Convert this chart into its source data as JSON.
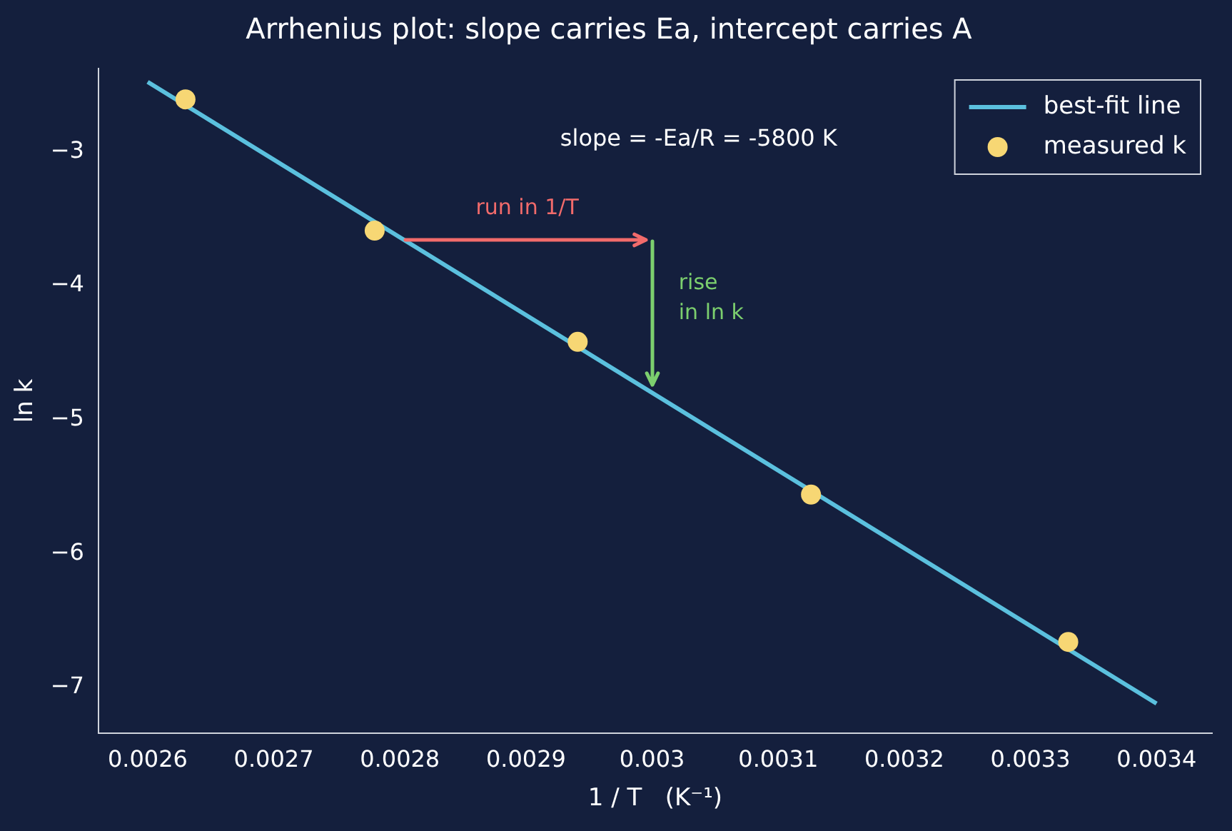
{
  "chart_data": {
    "type": "scatter",
    "title": "Arrhenius plot: slope carries Ea, intercept carries A",
    "xlabel": "1 / T   (K⁻¹)",
    "ylabel": "ln k",
    "xlim": [
      0.002561,
      0.003444
    ],
    "ylim": [
      -7.34,
      -2.38
    ],
    "xticks": [
      0.0026,
      0.0027,
      0.0028,
      0.0029,
      0.003,
      0.0031,
      0.0032,
      0.0033,
      0.0034
    ],
    "yticks": [
      -7,
      -6,
      -5,
      -4,
      -3
    ],
    "series": [
      {
        "name": "best-fit line",
        "type": "line",
        "color": "#5bc0de",
        "x": [
          0.0026,
          0.0034
        ],
        "values": [
          -2.48,
          -7.12
        ],
        "marker": "none"
      },
      {
        "name": "measured k",
        "type": "scatter",
        "color": "#f7d774",
        "x": [
          0.00263,
          0.00278,
          0.002941,
          0.003126,
          0.00333
        ],
        "values": [
          -2.61,
          -3.59,
          -4.42,
          -5.56,
          -6.66
        ],
        "marker": "circle"
      }
    ],
    "annotations": [
      "slope = -Ea/R = -5800 K",
      "run in 1/T",
      "rise\nin ln k"
    ],
    "legend": "top right",
    "grid": false
  }
}
